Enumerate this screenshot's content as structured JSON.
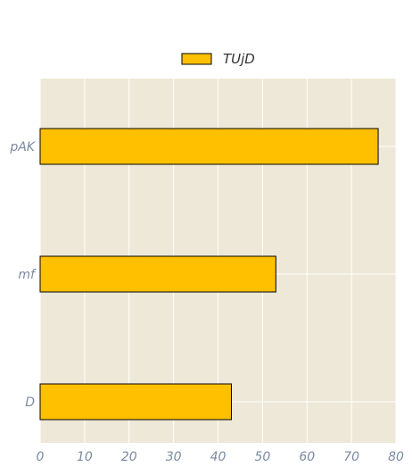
{
  "chart_data": {
    "type": "bar",
    "orientation": "horizontal",
    "categories": [
      "pAK",
      "mf",
      "D"
    ],
    "series": [
      {
        "name": "TUjD",
        "values": [
          76,
          53,
          43
        ]
      }
    ],
    "xlim": [
      0,
      80
    ],
    "xticks": [
      "0",
      "10",
      "20",
      "30",
      "40",
      "50",
      "60",
      "70",
      "80"
    ],
    "grid": true,
    "legend_position": "top-center",
    "colors": {
      "bar_fill": "#FFC000",
      "bar_stroke": "#000000",
      "plot_background": "#EEE8D8",
      "grid": "#FFFFFF",
      "tick_label": "#7B8AA0",
      "legend_text": "#333333"
    }
  }
}
